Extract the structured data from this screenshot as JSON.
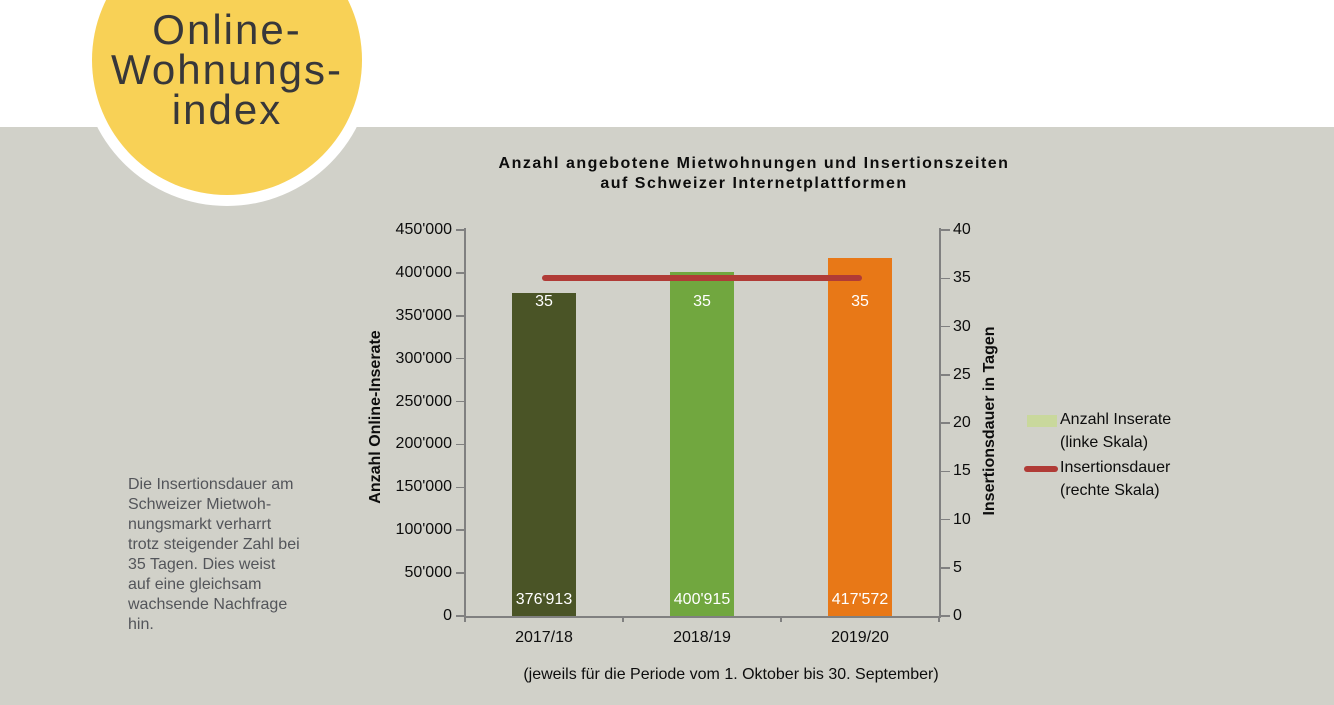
{
  "badge": {
    "lines": [
      "Online-",
      "Wohnungs-",
      "index"
    ],
    "bg_color": "#f8d156",
    "text_color": "#37373a"
  },
  "background": {
    "band_color": "#d1d1c9",
    "top_color": "#ffffff"
  },
  "note": {
    "lines": [
      "Die Insertionsdauer am",
      "Schweizer Mietwoh-",
      "nungsmarkt verharrt",
      "trotz steigender Zahl bei",
      "35 Tagen. Dies weist",
      "auf eine gleichsam",
      "wachsende Nachfrage",
      "hin."
    ]
  },
  "chart_data": {
    "type": "bar",
    "title_lines": [
      "Anzahl angebotene Mietwohnungen und Insertionszeiten",
      "auf Schweizer Internetplattformen"
    ],
    "categories": [
      "2017/18",
      "2018/19",
      "2019/20"
    ],
    "series": [
      {
        "name": "Anzahl Inserate (linke Skala)",
        "type": "bar",
        "axis": "left",
        "values": [
          376913,
          400915,
          417572
        ],
        "value_labels": [
          "376'913",
          "400'915",
          "417'572"
        ],
        "colors": [
          "#4a5426",
          "#71a73f",
          "#e87817"
        ]
      },
      {
        "name": "Insertionsdauer (rechte Skala)",
        "type": "line",
        "axis": "right",
        "values": [
          35,
          35,
          35
        ],
        "value_labels": [
          "35",
          "35",
          "35"
        ],
        "color": "#b03b36"
      }
    ],
    "left_axis": {
      "title": "Anzahl Online-Inserate",
      "min": 0,
      "max": 450000,
      "step": 50000,
      "tick_labels": [
        "450'000",
        "400'000",
        "350'000",
        "300'000",
        "250'000",
        "200'000",
        "150'000",
        "100'000",
        "50'000",
        "0"
      ]
    },
    "right_axis": {
      "title": "Insertionsdauer in Tagen",
      "min": 0,
      "max": 40,
      "step": 5,
      "tick_labels": [
        "40",
        "35",
        "30",
        "25",
        "20",
        "15",
        "10",
        "5",
        "0"
      ]
    },
    "footnote": "(jeweils für die Periode vom 1. Oktober bis 30. September)",
    "legend": [
      {
        "swatch_type": "box",
        "swatch_color": "#c9d89c",
        "label_lines": [
          "Anzahl Inserate",
          "(linke Skala)"
        ]
      },
      {
        "swatch_type": "line",
        "swatch_color": "#b03b36",
        "label_lines": [
          "Insertionsdauer",
          "(rechte Skala)"
        ]
      }
    ],
    "axis_color": "#808080"
  }
}
